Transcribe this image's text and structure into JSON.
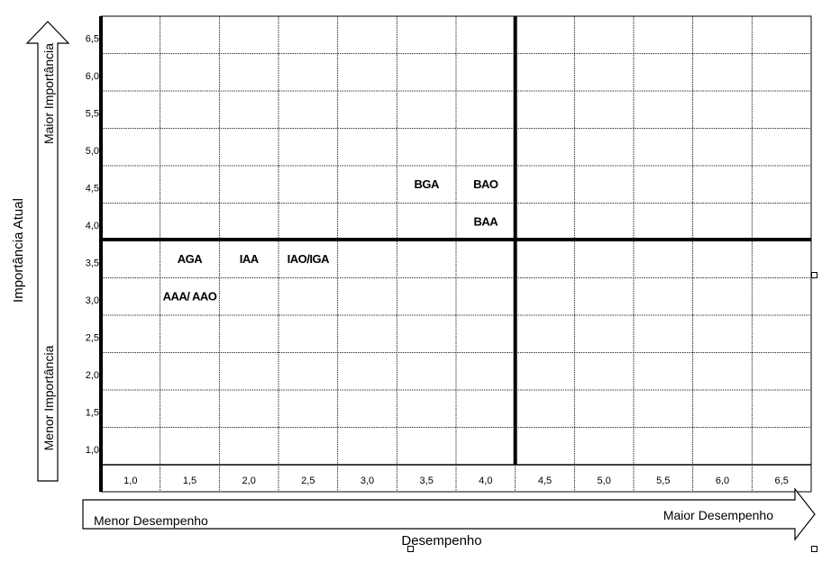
{
  "chart_data": {
    "type": "scatter",
    "title": "",
    "xlabel": "Desempenho",
    "ylabel": "Importância Atual",
    "x_arrow_low": "Menor Desempenho",
    "x_arrow_high": "Maior Desempenho",
    "y_arrow_low": "Menor Importância",
    "y_arrow_high": "Maior Importância",
    "x_ticks": [
      "1,0",
      "1,5",
      "2,0",
      "2,5",
      "3,0",
      "3,5",
      "4,0",
      "4,5",
      "5,0",
      "5,5",
      "6,0",
      "6,5"
    ],
    "y_ticks": [
      "1,0",
      "1,5",
      "2,0",
      "2,5",
      "3,0",
      "3,5",
      "4,0",
      "4,5",
      "5,0",
      "5,5",
      "6,0",
      "6,5"
    ],
    "xlim": [
      1.0,
      6.5
    ],
    "ylim": [
      1.0,
      6.5
    ],
    "grid": true,
    "quadrant_dividers": {
      "x": 4.0,
      "y": 4.0
    },
    "points": [
      {
        "label": "BGA",
        "x": 3.5,
        "y": 4.5
      },
      {
        "label": "BAO",
        "x": 4.0,
        "y": 4.5
      },
      {
        "label": "BAA",
        "x": 4.0,
        "y": 4.0
      },
      {
        "label": "AGA",
        "x": 1.5,
        "y": 3.5
      },
      {
        "label": "IAA",
        "x": 2.0,
        "y": 3.5
      },
      {
        "label": "IAO/IGA",
        "x": 2.5,
        "y": 3.5
      },
      {
        "label": "AAA/ AAO",
        "x": 1.5,
        "y": 3.0
      }
    ]
  },
  "colors": {
    "line": "#000000",
    "grid": "#000000",
    "background": "#ffffff",
    "text": "#000000"
  }
}
